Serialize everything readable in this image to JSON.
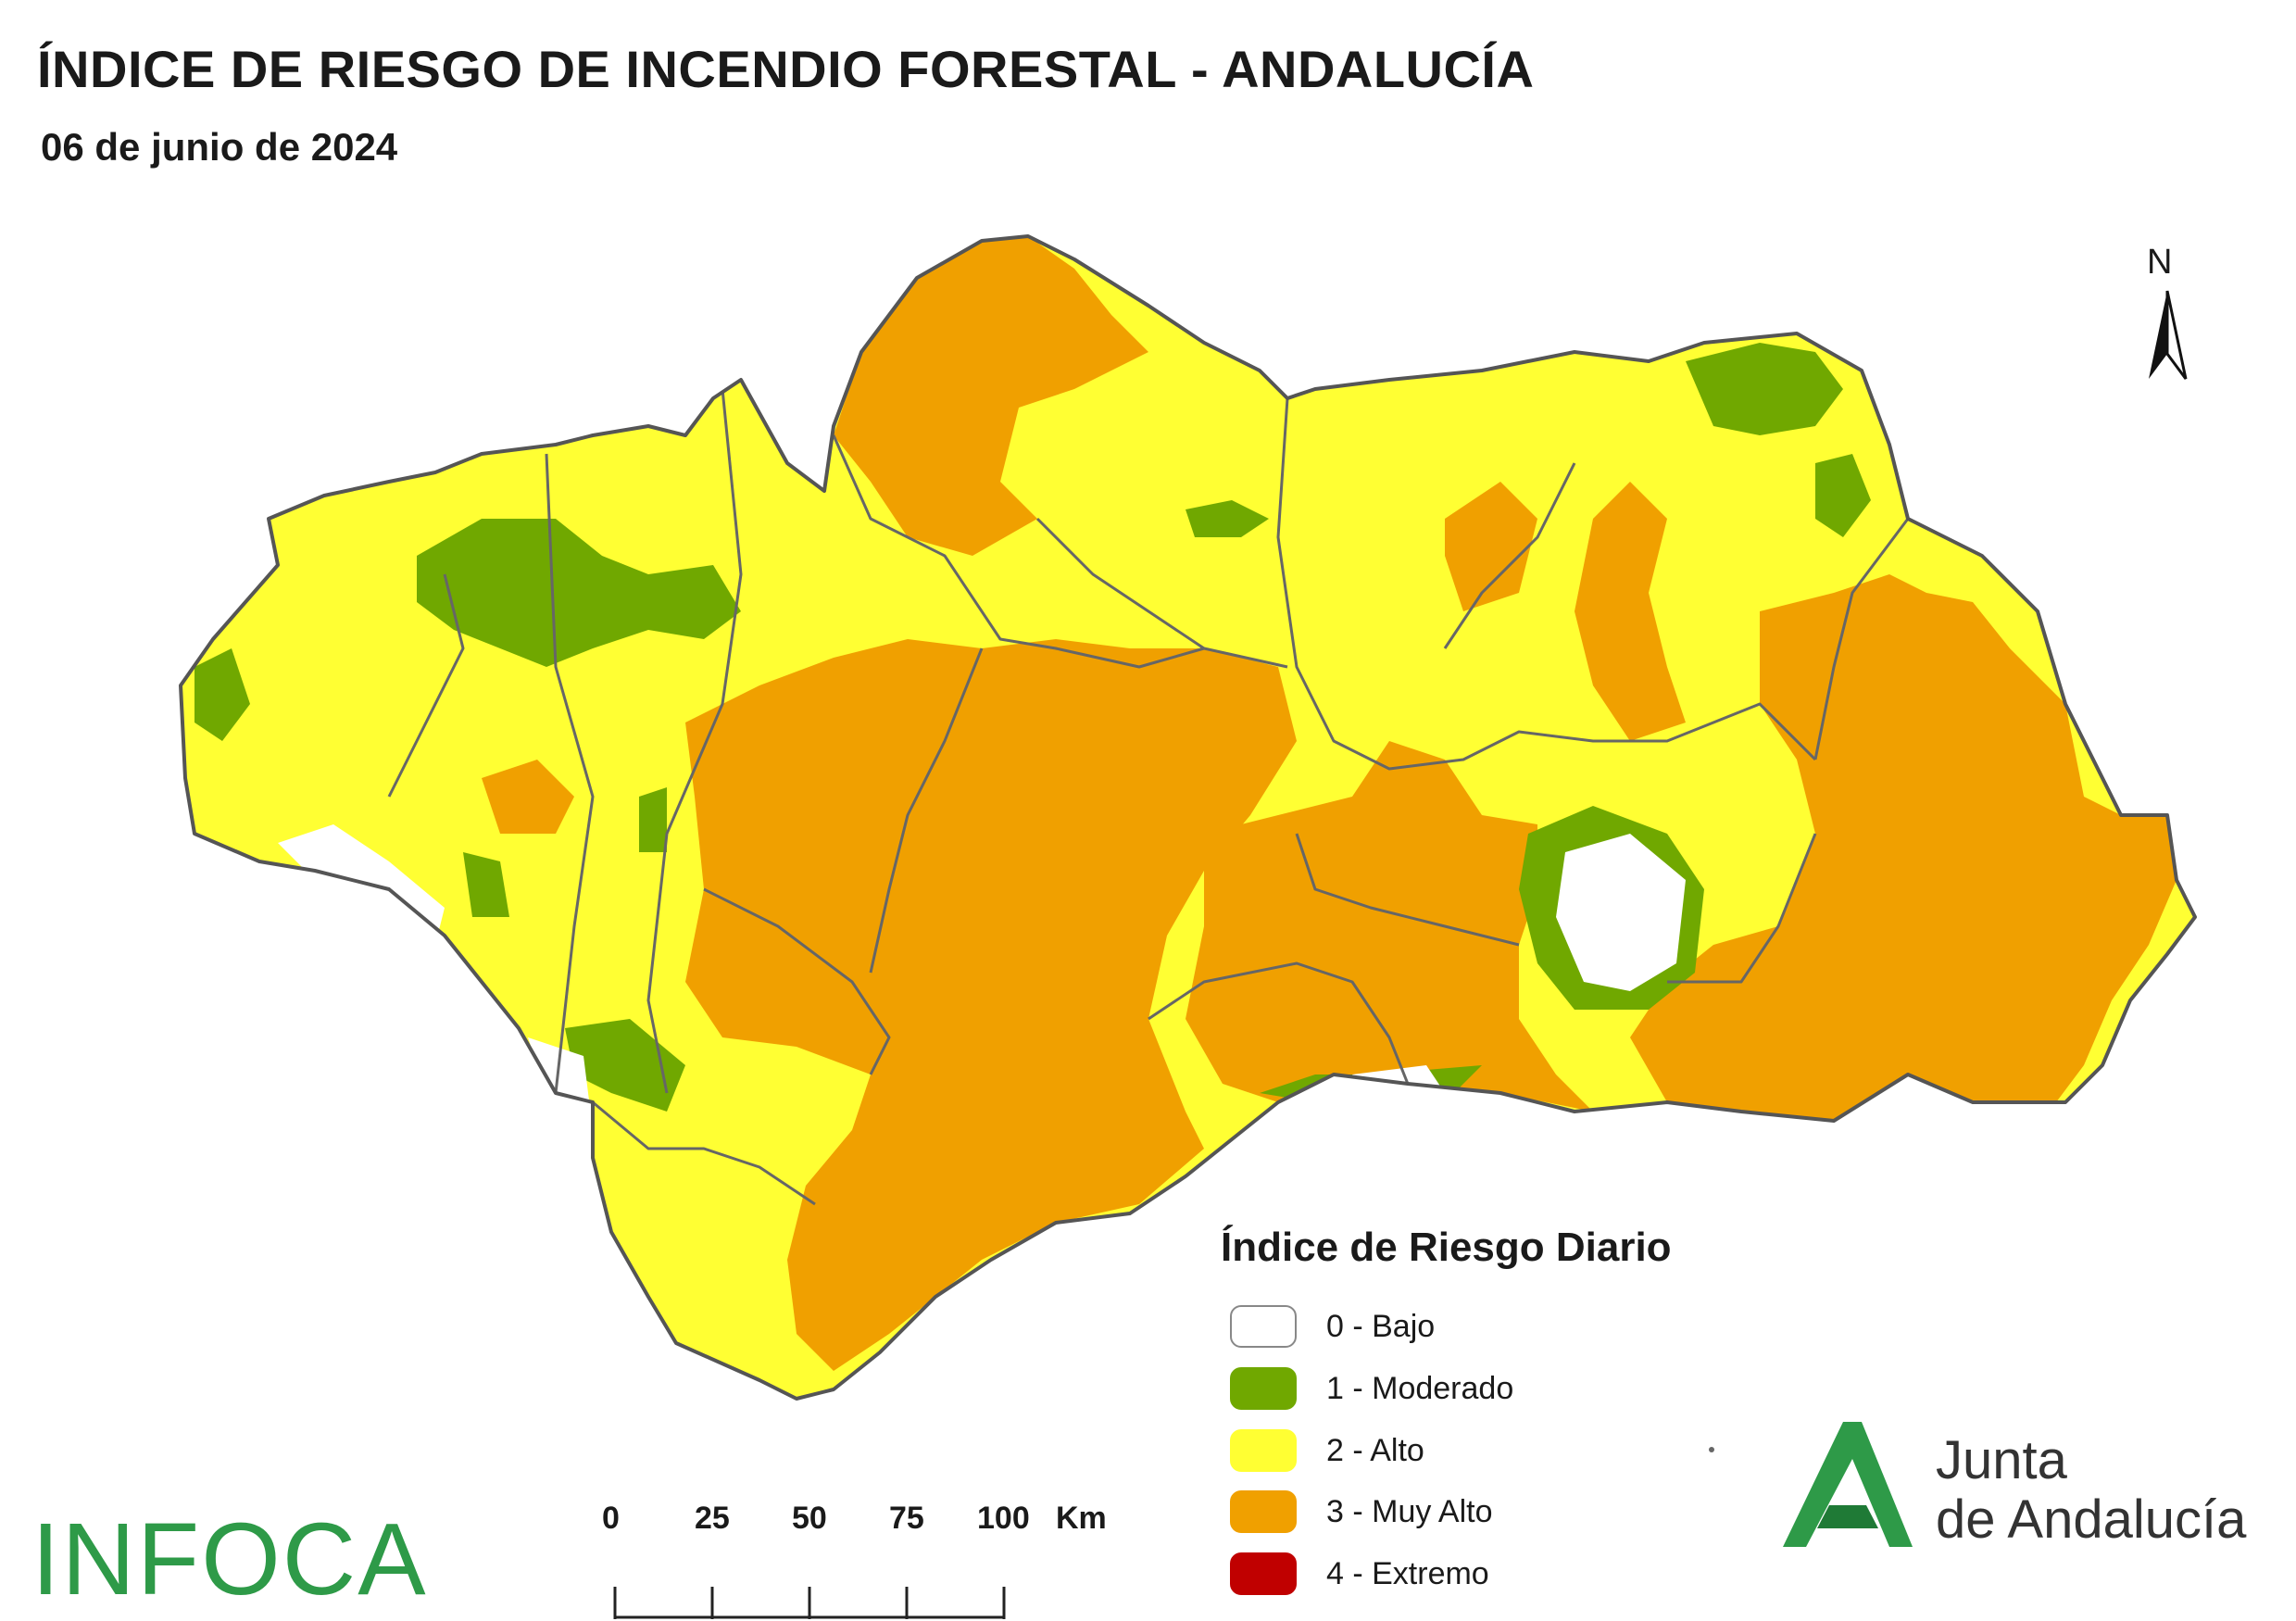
{
  "header": {
    "title": "ÍNDICE DE RIESGO DE INCENDIO FORESTAL - ANDALUCÍA",
    "date": "06 de junio de 2024"
  },
  "north_arrow": {
    "label": "N",
    "icon": "north-arrow-icon"
  },
  "legend": {
    "title": "Índice de Riesgo Diario",
    "items": [
      {
        "label": "0 - Bajo",
        "color": "#ffffff"
      },
      {
        "label": "1 - Moderado",
        "color": "#70a800"
      },
      {
        "label": "2 - Alto",
        "color": "#ffff33"
      },
      {
        "label": "3 - Muy Alto",
        "color": "#f0a000"
      },
      {
        "label": "4 - Extremo",
        "color": "#c00000"
      }
    ]
  },
  "scale": {
    "ticks": [
      "0",
      "25",
      "50",
      "75",
      "100"
    ],
    "unit": "Km"
  },
  "branding": {
    "infoca": "INFOCA",
    "junta_line1": "Junta",
    "junta_line2": "de Andalucía",
    "junta_color": "#2e9a48"
  }
}
